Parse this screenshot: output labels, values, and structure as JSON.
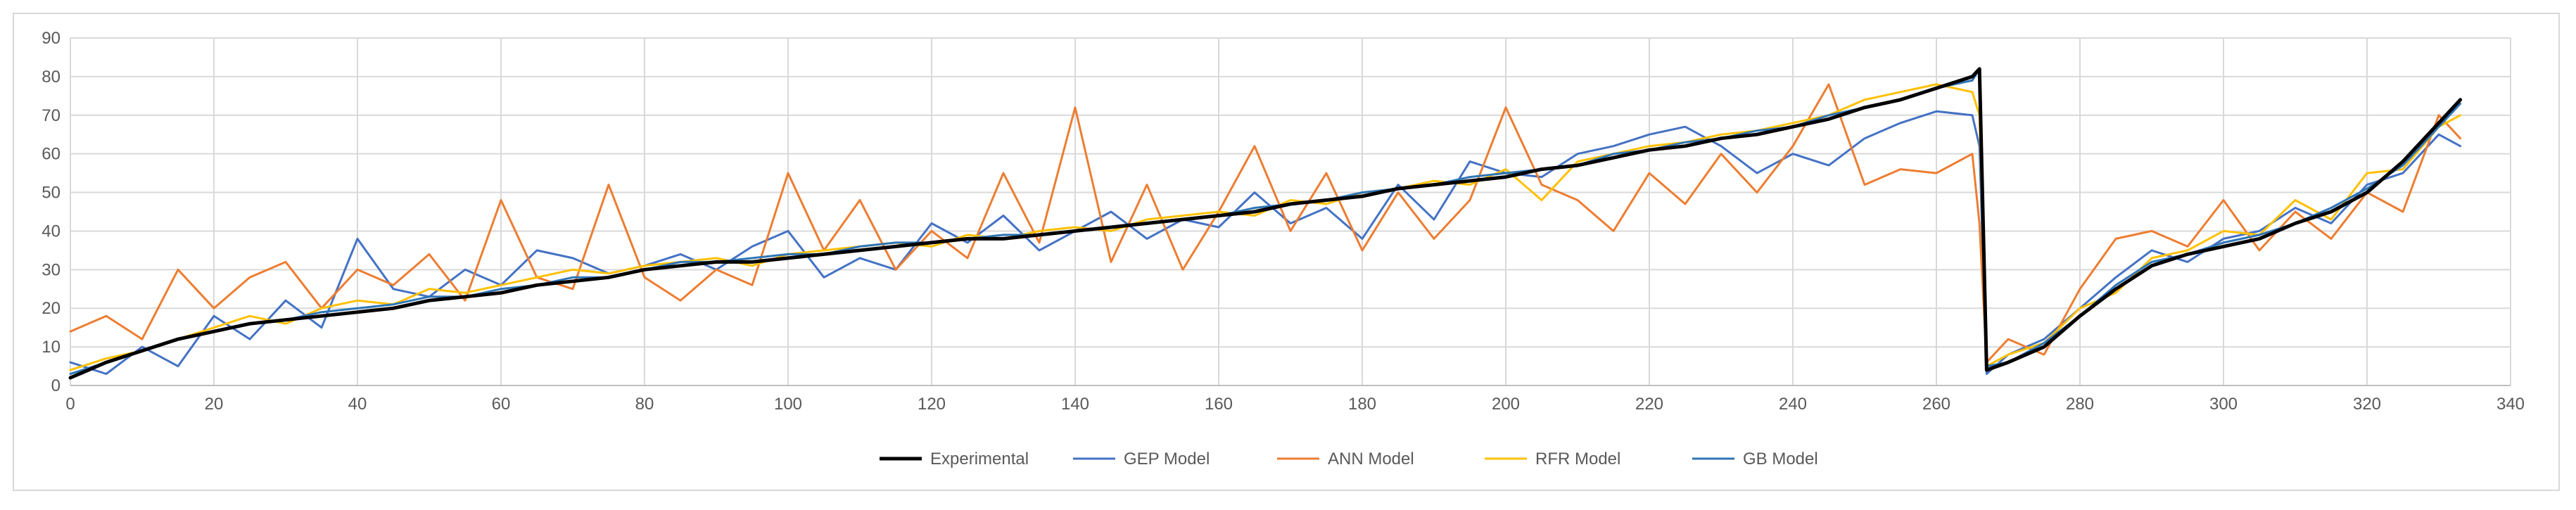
{
  "chart_data": {
    "type": "line",
    "title": "",
    "xlabel": "",
    "ylabel": "",
    "xlim": [
      0,
      340
    ],
    "ylim": [
      0,
      90
    ],
    "x_ticks": [
      0,
      20,
      40,
      60,
      80,
      100,
      120,
      140,
      160,
      180,
      200,
      220,
      240,
      260,
      280,
      300,
      320,
      340
    ],
    "y_ticks": [
      0,
      10,
      20,
      30,
      40,
      50,
      60,
      70,
      80,
      90
    ],
    "x_tick_labels": [
      "0",
      "20",
      "40",
      "60",
      "80",
      "100",
      "120",
      "140",
      "160",
      "180",
      "200",
      "220",
      "240",
      "260",
      "280",
      "300",
      "320",
      "340"
    ],
    "y_tick_labels": [
      "0",
      "10",
      "20",
      "30",
      "40",
      "50",
      "60",
      "70",
      "80",
      "90"
    ],
    "grid": true,
    "legend_position": "bottom",
    "x": [
      0,
      5,
      10,
      15,
      20,
      25,
      30,
      35,
      40,
      45,
      50,
      55,
      60,
      65,
      70,
      75,
      80,
      85,
      90,
      95,
      100,
      105,
      110,
      115,
      120,
      125,
      130,
      135,
      140,
      145,
      150,
      155,
      160,
      165,
      170,
      175,
      180,
      185,
      190,
      195,
      200,
      205,
      210,
      215,
      220,
      225,
      230,
      235,
      240,
      245,
      250,
      255,
      260,
      265,
      266,
      267,
      270,
      275,
      280,
      285,
      290,
      295,
      300,
      305,
      310,
      315,
      320,
      325,
      330,
      333
    ],
    "series": [
      {
        "name": "Experimental",
        "color": "#000000",
        "values": [
          2,
          6,
          9,
          12,
          14,
          16,
          17,
          18,
          19,
          20,
          22,
          23,
          24,
          26,
          27,
          28,
          30,
          31,
          32,
          32,
          33,
          34,
          35,
          36,
          37,
          38,
          38,
          39,
          40,
          41,
          42,
          43,
          44,
          45,
          47,
          48,
          49,
          51,
          52,
          53,
          54,
          56,
          57,
          59,
          61,
          62,
          64,
          65,
          67,
          69,
          72,
          74,
          77,
          80,
          82,
          4,
          6,
          10,
          18,
          25,
          31,
          34,
          36,
          38,
          42,
          45,
          50,
          58,
          68,
          74
        ]
      },
      {
        "name": "GEP Model",
        "color": "#4472c4",
        "values": [
          6,
          3,
          10,
          5,
          18,
          12,
          22,
          15,
          38,
          25,
          23,
          30,
          26,
          35,
          33,
          29,
          31,
          34,
          30,
          36,
          40,
          28,
          33,
          30,
          42,
          37,
          44,
          35,
          40,
          45,
          38,
          43,
          41,
          50,
          42,
          46,
          38,
          52,
          43,
          58,
          55,
          54,
          60,
          62,
          65,
          67,
          62,
          55,
          60,
          57,
          64,
          68,
          71,
          70,
          62,
          3,
          8,
          12,
          20,
          28,
          35,
          32,
          38,
          40,
          46,
          42,
          52,
          55,
          65,
          62
        ]
      },
      {
        "name": "ANN Model",
        "color": "#ed7d31",
        "values": [
          14,
          18,
          12,
          30,
          20,
          28,
          32,
          20,
          30,
          26,
          34,
          22,
          48,
          28,
          25,
          52,
          28,
          22,
          30,
          26,
          55,
          35,
          48,
          30,
          40,
          33,
          55,
          37,
          72,
          32,
          52,
          30,
          45,
          62,
          40,
          55,
          35,
          50,
          38,
          48,
          72,
          52,
          48,
          40,
          55,
          47,
          60,
          50,
          62,
          78,
          52,
          56,
          55,
          60,
          42,
          6,
          12,
          8,
          25,
          38,
          40,
          36,
          48,
          35,
          45,
          38,
          50,
          45,
          70,
          64
        ]
      },
      {
        "name": "RFR Model",
        "color": "#ffc000",
        "values": [
          4,
          7,
          9,
          12,
          15,
          18,
          16,
          20,
          22,
          21,
          25,
          24,
          26,
          28,
          30,
          29,
          31,
          32,
          33,
          31,
          34,
          35,
          36,
          37,
          36,
          39,
          38,
          40,
          41,
          40,
          43,
          44,
          45,
          44,
          48,
          47,
          50,
          51,
          53,
          52,
          56,
          48,
          58,
          60,
          62,
          63,
          65,
          66,
          68,
          70,
          74,
          76,
          78,
          76,
          70,
          5,
          8,
          11,
          20,
          24,
          33,
          35,
          40,
          39,
          48,
          43,
          55,
          56,
          67,
          70
        ]
      },
      {
        "name": "GB Model",
        "color": "#2e75b6",
        "values": [
          3,
          6,
          9,
          12,
          14,
          16,
          17,
          19,
          20,
          21,
          23,
          23,
          25,
          26,
          28,
          28,
          30,
          32,
          32,
          33,
          34,
          34,
          36,
          37,
          37,
          38,
          39,
          39,
          40,
          41,
          42,
          43,
          44,
          46,
          47,
          48,
          50,
          51,
          52,
          54,
          55,
          56,
          57,
          60,
          61,
          63,
          64,
          66,
          67,
          70,
          72,
          74,
          77,
          79,
          82,
          5,
          6,
          11,
          18,
          26,
          32,
          34,
          37,
          39,
          42,
          46,
          51,
          57,
          67,
          73
        ]
      }
    ]
  }
}
